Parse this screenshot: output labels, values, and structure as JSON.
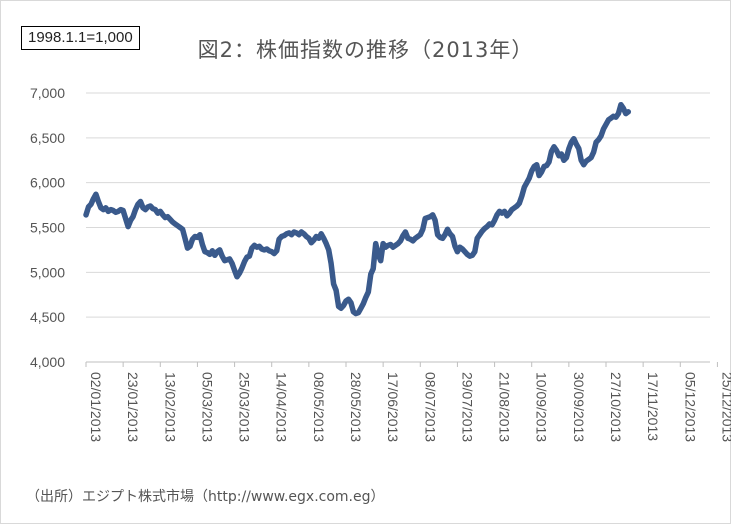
{
  "chart_data": {
    "type": "line",
    "title": "図2：株価指数の推移（2013年）",
    "base_note": "1998.1.1=1,000",
    "source": "（出所）エジプト株式市場（http://www.egx.com.eg）",
    "ylim": [
      4000,
      7000
    ],
    "yticks": [
      4000,
      4500,
      5000,
      5500,
      6000,
      6500,
      7000
    ],
    "ytick_labels": [
      "4,000",
      "4,500",
      "5,000",
      "5,500",
      "6,000",
      "6,500",
      "7,000"
    ],
    "xlim": [
      0,
      252
    ],
    "xticks": [
      {
        "pos": 0,
        "label": "02/01/2013"
      },
      {
        "pos": 15,
        "label": "23/01/2013"
      },
      {
        "pos": 30,
        "label": "13/02/2013"
      },
      {
        "pos": 45,
        "label": "05/03/2013"
      },
      {
        "pos": 60,
        "label": "25/03/2013"
      },
      {
        "pos": 75,
        "label": "14/04/2013"
      },
      {
        "pos": 90,
        "label": "08/05/2013"
      },
      {
        "pos": 105,
        "label": "28/05/2013"
      },
      {
        "pos": 120,
        "label": "17/06/2013"
      },
      {
        "pos": 135,
        "label": "08/07/2013"
      },
      {
        "pos": 150,
        "label": "29/07/2013"
      },
      {
        "pos": 165,
        "label": "21/08/2013"
      },
      {
        "pos": 180,
        "label": "10/09/2013"
      },
      {
        "pos": 195,
        "label": "30/09/2013"
      },
      {
        "pos": 210,
        "label": "27/10/2013"
      },
      {
        "pos": 225,
        "label": "17/11/2013"
      },
      {
        "pos": 240,
        "label": "05/12/2013"
      },
      {
        "pos": 255,
        "label": "25/12/2013"
      }
    ],
    "grid": true,
    "series": [
      {
        "name": "",
        "color": "#3a5a8c",
        "points": [
          [
            0,
            5640
          ],
          [
            1,
            5730
          ],
          [
            2,
            5760
          ],
          [
            3,
            5820
          ],
          [
            4,
            5870
          ],
          [
            5,
            5790
          ],
          [
            6,
            5720
          ],
          [
            7,
            5700
          ],
          [
            8,
            5720
          ],
          [
            9,
            5680
          ],
          [
            10,
            5700
          ],
          [
            11,
            5690
          ],
          [
            12,
            5670
          ],
          [
            13,
            5680
          ],
          [
            14,
            5700
          ],
          [
            15,
            5690
          ],
          [
            16,
            5600
          ],
          [
            17,
            5510
          ],
          [
            18,
            5580
          ],
          [
            19,
            5620
          ],
          [
            20,
            5700
          ],
          [
            21,
            5760
          ],
          [
            22,
            5790
          ],
          [
            23,
            5720
          ],
          [
            24,
            5700
          ],
          [
            25,
            5730
          ],
          [
            26,
            5740
          ],
          [
            27,
            5710
          ],
          [
            28,
            5700
          ],
          [
            29,
            5660
          ],
          [
            30,
            5680
          ],
          [
            31,
            5640
          ],
          [
            32,
            5610
          ],
          [
            33,
            5620
          ],
          [
            34,
            5590
          ],
          [
            35,
            5560
          ],
          [
            36,
            5540
          ],
          [
            37,
            5520
          ],
          [
            38,
            5500
          ],
          [
            39,
            5480
          ],
          [
            40,
            5380
          ],
          [
            41,
            5270
          ],
          [
            42,
            5290
          ],
          [
            43,
            5370
          ],
          [
            44,
            5400
          ],
          [
            45,
            5390
          ],
          [
            46,
            5420
          ],
          [
            47,
            5310
          ],
          [
            48,
            5230
          ],
          [
            49,
            5220
          ],
          [
            50,
            5200
          ],
          [
            51,
            5240
          ],
          [
            52,
            5190
          ],
          [
            53,
            5230
          ],
          [
            54,
            5250
          ],
          [
            55,
            5180
          ],
          [
            56,
            5130
          ],
          [
            57,
            5140
          ],
          [
            58,
            5150
          ],
          [
            59,
            5100
          ],
          [
            60,
            5020
          ],
          [
            61,
            4950
          ],
          [
            62,
            4990
          ],
          [
            63,
            5050
          ],
          [
            64,
            5120
          ],
          [
            65,
            5170
          ],
          [
            66,
            5180
          ],
          [
            67,
            5270
          ],
          [
            68,
            5300
          ],
          [
            69,
            5280
          ],
          [
            70,
            5290
          ],
          [
            71,
            5260
          ],
          [
            72,
            5250
          ],
          [
            73,
            5260
          ],
          [
            74,
            5240
          ],
          [
            75,
            5230
          ],
          [
            76,
            5210
          ],
          [
            77,
            5240
          ],
          [
            78,
            5370
          ],
          [
            79,
            5400
          ],
          [
            80,
            5410
          ],
          [
            81,
            5430
          ],
          [
            82,
            5440
          ],
          [
            83,
            5420
          ],
          [
            84,
            5450
          ],
          [
            85,
            5440
          ],
          [
            86,
            5420
          ],
          [
            87,
            5450
          ],
          [
            88,
            5430
          ],
          [
            89,
            5400
          ],
          [
            90,
            5380
          ],
          [
            91,
            5330
          ],
          [
            92,
            5360
          ],
          [
            93,
            5400
          ],
          [
            94,
            5380
          ],
          [
            95,
            5430
          ],
          [
            96,
            5380
          ],
          [
            97,
            5320
          ],
          [
            98,
            5250
          ],
          [
            99,
            5100
          ],
          [
            100,
            4870
          ],
          [
            101,
            4800
          ],
          [
            102,
            4620
          ],
          [
            103,
            4600
          ],
          [
            104,
            4630
          ],
          [
            105,
            4680
          ],
          [
            106,
            4700
          ],
          [
            107,
            4660
          ],
          [
            108,
            4560
          ],
          [
            109,
            4540
          ],
          [
            110,
            4550
          ],
          [
            111,
            4600
          ],
          [
            112,
            4650
          ],
          [
            113,
            4720
          ],
          [
            114,
            4780
          ],
          [
            115,
            4980
          ],
          [
            116,
            5040
          ],
          [
            117,
            5320
          ],
          [
            118,
            5200
          ],
          [
            119,
            5130
          ],
          [
            120,
            5320
          ],
          [
            121,
            5280
          ],
          [
            122,
            5300
          ],
          [
            123,
            5310
          ],
          [
            124,
            5280
          ],
          [
            125,
            5300
          ],
          [
            126,
            5320
          ],
          [
            127,
            5350
          ],
          [
            128,
            5410
          ],
          [
            129,
            5450
          ],
          [
            130,
            5380
          ],
          [
            131,
            5370
          ],
          [
            132,
            5350
          ],
          [
            133,
            5380
          ],
          [
            134,
            5400
          ],
          [
            135,
            5420
          ],
          [
            136,
            5480
          ],
          [
            137,
            5600
          ],
          [
            138,
            5610
          ],
          [
            139,
            5620
          ],
          [
            140,
            5640
          ],
          [
            141,
            5580
          ],
          [
            142,
            5420
          ],
          [
            143,
            5390
          ],
          [
            144,
            5380
          ],
          [
            145,
            5420
          ],
          [
            146,
            5480
          ],
          [
            147,
            5430
          ],
          [
            148,
            5400
          ],
          [
            149,
            5290
          ],
          [
            150,
            5230
          ],
          [
            151,
            5280
          ],
          [
            152,
            5260
          ],
          [
            153,
            5230
          ],
          [
            154,
            5200
          ],
          [
            155,
            5180
          ],
          [
            156,
            5190
          ],
          [
            157,
            5230
          ],
          [
            158,
            5380
          ],
          [
            159,
            5420
          ],
          [
            160,
            5460
          ],
          [
            161,
            5490
          ],
          [
            162,
            5510
          ],
          [
            163,
            5540
          ],
          [
            164,
            5530
          ],
          [
            165,
            5580
          ],
          [
            166,
            5640
          ],
          [
            167,
            5680
          ],
          [
            168,
            5660
          ],
          [
            169,
            5680
          ],
          [
            170,
            5630
          ],
          [
            171,
            5660
          ],
          [
            172,
            5700
          ],
          [
            173,
            5720
          ],
          [
            174,
            5740
          ],
          [
            175,
            5770
          ],
          [
            176,
            5850
          ],
          [
            177,
            5950
          ],
          [
            178,
            6000
          ],
          [
            179,
            6050
          ],
          [
            180,
            6130
          ],
          [
            181,
            6180
          ],
          [
            182,
            6200
          ],
          [
            183,
            6080
          ],
          [
            184,
            6120
          ],
          [
            185,
            6180
          ],
          [
            186,
            6190
          ],
          [
            187,
            6230
          ],
          [
            188,
            6350
          ],
          [
            189,
            6400
          ],
          [
            190,
            6360
          ],
          [
            191,
            6300
          ],
          [
            192,
            6320
          ],
          [
            193,
            6250
          ],
          [
            194,
            6280
          ],
          [
            195,
            6380
          ],
          [
            196,
            6450
          ],
          [
            197,
            6490
          ],
          [
            198,
            6430
          ],
          [
            199,
            6380
          ],
          [
            200,
            6250
          ],
          [
            201,
            6200
          ],
          [
            202,
            6240
          ],
          [
            203,
            6260
          ],
          [
            204,
            6280
          ],
          [
            205,
            6340
          ],
          [
            206,
            6450
          ],
          [
            207,
            6480
          ],
          [
            208,
            6520
          ],
          [
            209,
            6600
          ],
          [
            210,
            6650
          ],
          [
            211,
            6700
          ],
          [
            212,
            6720
          ],
          [
            213,
            6740
          ],
          [
            214,
            6730
          ],
          [
            215,
            6770
          ],
          [
            216,
            6870
          ],
          [
            217,
            6830
          ],
          [
            218,
            6770
          ],
          [
            219,
            6790
          ]
        ]
      }
    ]
  }
}
